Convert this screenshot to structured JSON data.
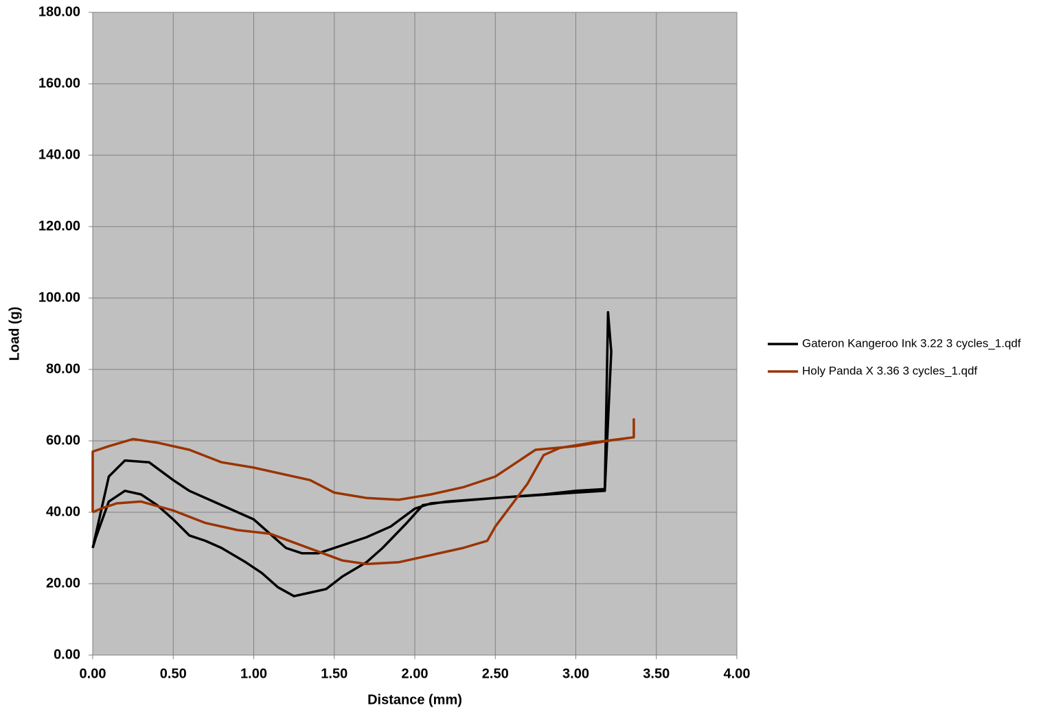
{
  "chart_data": {
    "type": "line",
    "x_label": "Distance (mm)",
    "y_label": "Load (g)",
    "xlim": [
      0,
      4
    ],
    "ylim": [
      0,
      180
    ],
    "grid": true,
    "legend": "right",
    "xticks": [
      {
        "value": 0,
        "label": "0.00"
      },
      {
        "value": 0.5,
        "label": "0.50"
      },
      {
        "value": 1,
        "label": "1.00"
      },
      {
        "value": 1.5,
        "label": "1.50"
      },
      {
        "value": 2,
        "label": "2.00"
      },
      {
        "value": 2.5,
        "label": "2.50"
      },
      {
        "value": 3,
        "label": "3.00"
      },
      {
        "value": 3.5,
        "label": "3.50"
      },
      {
        "value": 4,
        "label": "4.00"
      }
    ],
    "yticks": [
      {
        "value": 0,
        "label": "0.00"
      },
      {
        "value": 20,
        "label": "20.00"
      },
      {
        "value": 40,
        "label": "40.00"
      },
      {
        "value": 60,
        "label": "60.00"
      },
      {
        "value": 80,
        "label": "80.00"
      },
      {
        "value": 100,
        "label": "100.00"
      },
      {
        "value": 120,
        "label": "120.00"
      },
      {
        "value": 140,
        "label": "140.00"
      },
      {
        "value": 160,
        "label": "160.00"
      },
      {
        "value": 180,
        "label": "180.00"
      }
    ],
    "series": [
      {
        "name": "Gateron Kangeroo Ink 3.22 3 cycles_1.qdf",
        "color": "#000000",
        "x": [
          0,
          0.1,
          0.2,
          0.35,
          0.5,
          0.6,
          0.75,
          0.9,
          1.0,
          1.1,
          1.2,
          1.3,
          1.4,
          1.5,
          1.7,
          1.85,
          2.0,
          2.1,
          2.5,
          2.8,
          3.0,
          3.18,
          3.2,
          3.22,
          3.18,
          3.0,
          2.5,
          2.2,
          2.05,
          1.95,
          1.8,
          1.7,
          1.55,
          1.45,
          1.35,
          1.25,
          1.15,
          1.05,
          0.95,
          0.8,
          0.7,
          0.6,
          0.5,
          0.4,
          0.3,
          0.2,
          0.1,
          0.02,
          0
        ],
        "values": [
          30,
          50,
          54.5,
          54,
          49,
          46,
          43,
          40,
          38,
          34,
          30,
          28.5,
          28.5,
          30,
          33,
          36,
          41,
          42.5,
          44,
          45,
          46,
          46.5,
          96,
          85,
          46,
          45.5,
          44,
          43,
          42,
          37,
          30,
          26,
          22,
          18.5,
          17.5,
          16.5,
          19,
          23,
          26,
          30,
          32,
          33.5,
          38,
          42,
          45,
          46,
          43,
          33,
          30
        ]
      },
      {
        "name": "Holy Panda X 3.36 3 cycles_1.qdf",
        "color": "#9a3300",
        "x": [
          0,
          0,
          0.1,
          0.25,
          0.4,
          0.6,
          0.8,
          1.0,
          1.2,
          1.35,
          1.5,
          1.7,
          1.9,
          2.1,
          2.3,
          2.5,
          2.6,
          2.75,
          3.0,
          3.2,
          3.36,
          3.36,
          3.36,
          3.1,
          2.9,
          2.8,
          2.7,
          2.6,
          2.5,
          2.45,
          2.3,
          2.1,
          1.9,
          1.7,
          1.55,
          1.4,
          1.25,
          1.1,
          0.9,
          0.7,
          0.5,
          0.3,
          0.15,
          0.05,
          0
        ],
        "values": [
          40,
          57,
          58.5,
          60.5,
          59.5,
          57.5,
          54,
          52.5,
          50.5,
          49,
          45.5,
          44,
          43.5,
          45,
          47,
          50,
          53,
          57.5,
          58.5,
          60,
          61,
          66,
          61,
          59.5,
          58,
          56,
          48,
          42,
          36,
          32,
          30,
          28,
          26,
          25.5,
          26.5,
          29,
          31.5,
          34,
          35,
          37,
          40.5,
          43,
          42.5,
          41,
          40
        ]
      }
    ]
  }
}
